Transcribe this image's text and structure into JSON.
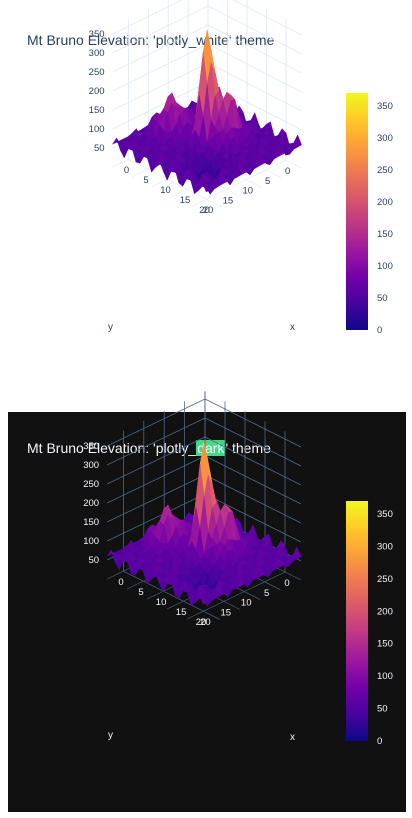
{
  "chart_data": [
    {
      "type": "surface",
      "title_prefix": "Mt Bruno Elevation: 'plotly_",
      "title_highlight": "",
      "title_suffix": "white' theme",
      "theme": "plotly_white",
      "xlabel": "x",
      "ylabel": "y",
      "x_ticks": [
        "0",
        "5",
        "10",
        "15",
        "20"
      ],
      "y_ticks": [
        "0",
        "5",
        "10",
        "15",
        "20"
      ],
      "z_ticks": [
        "50",
        "100",
        "150",
        "200",
        "250",
        "300",
        "350"
      ],
      "colorbar_ticks": [
        "0",
        "50",
        "100",
        "150",
        "200",
        "250",
        "300",
        "350"
      ],
      "colorscale": "plasma",
      "zlim": [
        0,
        370
      ],
      "colors": {
        "bg": "#ffffff",
        "grid": "#dfe8f3",
        "text": "#2a3f5f"
      }
    },
    {
      "type": "surface",
      "title_prefix": "Mt Bruno Elevation: 'plotly_",
      "title_highlight": "dark",
      "title_suffix": "' theme",
      "theme": "plotly_dark",
      "xlabel": "x",
      "ylabel": "y",
      "x_ticks": [
        "0",
        "5",
        "10",
        "15",
        "20"
      ],
      "y_ticks": [
        "0",
        "5",
        "10",
        "15",
        "20"
      ],
      "z_ticks": [
        "50",
        "100",
        "150",
        "200",
        "250",
        "300",
        "350"
      ],
      "colorbar_ticks": [
        "0",
        "50",
        "100",
        "150",
        "200",
        "250",
        "300",
        "350"
      ],
      "colorscale": "plasma",
      "zlim": [
        0,
        370
      ],
      "colors": {
        "bg": "#111111",
        "grid": "#506784",
        "text": "#f2f5fa",
        "highlight": "#3ddc84"
      }
    }
  ]
}
